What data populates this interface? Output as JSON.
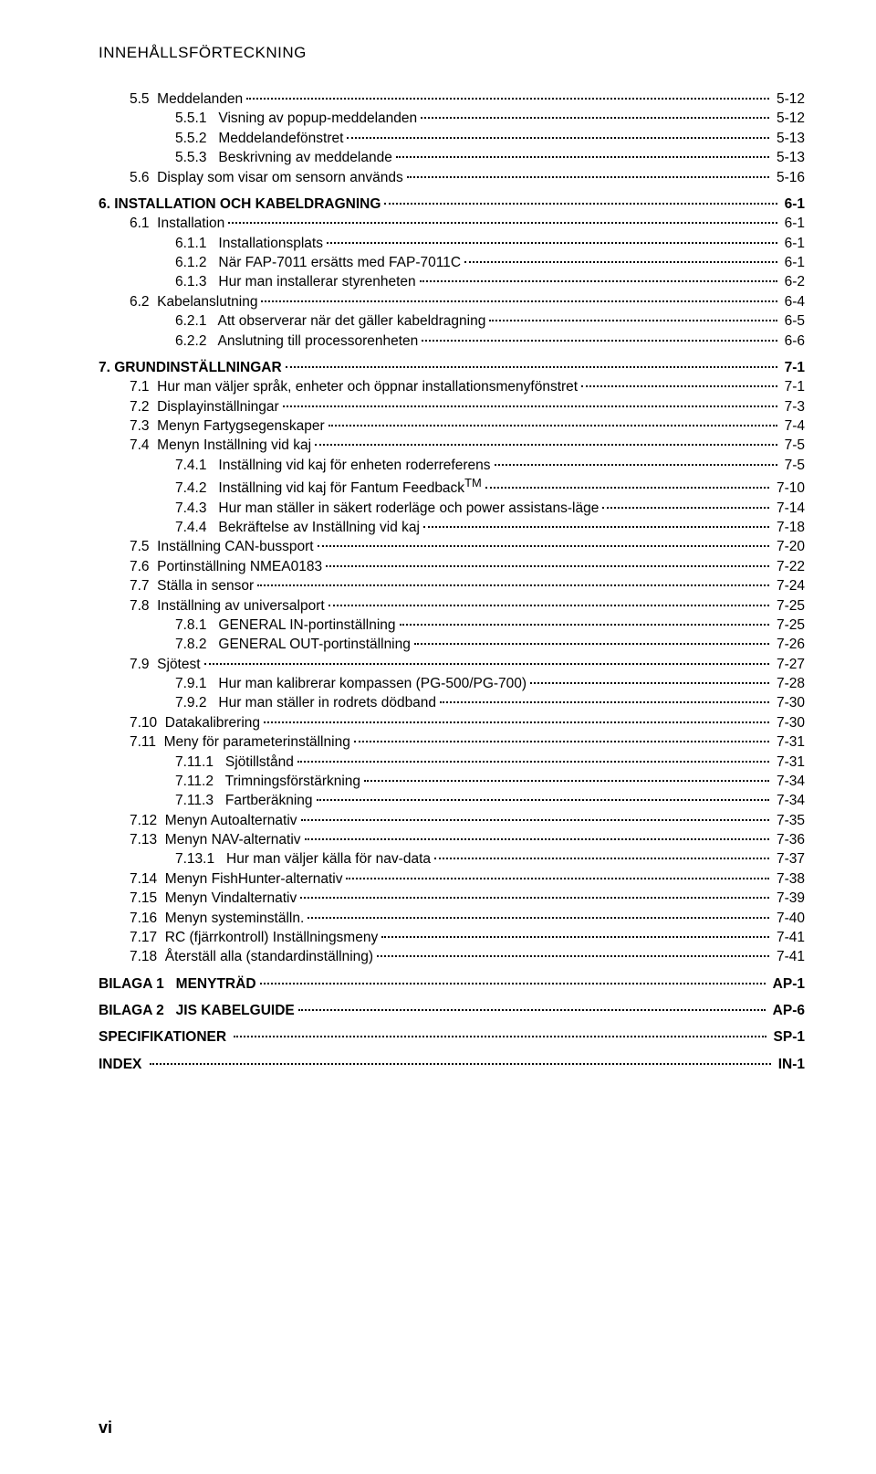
{
  "header": "INNEHÅLLSFÖRTECKNING",
  "footer": "vi",
  "toc": [
    {
      "level": 1,
      "num": "5.5",
      "title": "Meddelanden",
      "page": "5-12",
      "bold": false,
      "block": true
    },
    {
      "level": 2,
      "num": "5.5.1",
      "title": "Visning av popup-meddelanden",
      "page": "5-12"
    },
    {
      "level": 2,
      "num": "5.5.2",
      "title": "Meddelandefönstret",
      "page": "5-13"
    },
    {
      "level": 2,
      "num": "5.5.3",
      "title": "Beskrivning av meddelande",
      "page": "5-13"
    },
    {
      "level": 1,
      "num": "5.6",
      "title": "Display som visar om sensorn används",
      "page": "5-16"
    },
    {
      "level": 0,
      "num": "6.",
      "title": "INSTALLATION OCH KABELDRAGNING",
      "page": "6-1",
      "bold": true,
      "block": true
    },
    {
      "level": 1,
      "num": "6.1",
      "title": "Installation",
      "page": "6-1"
    },
    {
      "level": 2,
      "num": "6.1.1",
      "title": "Installationsplats",
      "page": "6-1"
    },
    {
      "level": 2,
      "num": "6.1.2",
      "title": "När FAP-7011 ersätts med FAP-7011C",
      "page": "6-1"
    },
    {
      "level": 2,
      "num": "6.1.3",
      "title": "Hur man installerar styrenheten",
      "page": "6-2"
    },
    {
      "level": 1,
      "num": "6.2",
      "title": "Kabelanslutning",
      "page": "6-4"
    },
    {
      "level": 2,
      "num": "6.2.1",
      "title": "Att observerar när det gäller kabeldragning",
      "page": "6-5"
    },
    {
      "level": 2,
      "num": "6.2.2",
      "title": "Anslutning till processorenheten",
      "page": "6-6"
    },
    {
      "level": 0,
      "num": "7.",
      "title": "GRUNDINSTÄLLNINGAR",
      "page": "7-1",
      "bold": true,
      "block": true
    },
    {
      "level": 1,
      "num": "7.1",
      "title": "Hur man väljer språk, enheter och öppnar installationsmenyfönstret",
      "page": "7-1"
    },
    {
      "level": 1,
      "num": "7.2",
      "title": "Displayinställningar",
      "page": "7-3"
    },
    {
      "level": 1,
      "num": "7.3",
      "title": "Menyn Fartygsegenskaper",
      "page": "7-4"
    },
    {
      "level": 1,
      "num": "7.4",
      "title": "Menyn Inställning vid kaj",
      "page": "7-5"
    },
    {
      "level": 2,
      "num": "7.4.1",
      "title": "Inställning vid kaj för enheten roderreferens",
      "page": "7-5"
    },
    {
      "level": 2,
      "num": "7.4.2",
      "title": "Inställning vid kaj för Fantum Feedback",
      "sup": "TM",
      "page": "7-10"
    },
    {
      "level": 2,
      "num": "7.4.3",
      "title": "Hur man ställer in säkert roderläge och power assistans-läge",
      "page": "7-14"
    },
    {
      "level": 2,
      "num": "7.4.4",
      "title": "Bekräftelse av Inställning vid kaj",
      "page": "7-18"
    },
    {
      "level": 1,
      "num": "7.5",
      "title": "Inställning CAN-bussport",
      "page": "7-20"
    },
    {
      "level": 1,
      "num": "7.6",
      "title": "Portinställning NMEA0183",
      "page": "7-22"
    },
    {
      "level": 1,
      "num": "7.7",
      "title": "Ställa in sensor",
      "page": "7-24"
    },
    {
      "level": 1,
      "num": "7.8",
      "title": "Inställning av universalport",
      "page": "7-25"
    },
    {
      "level": 2,
      "num": "7.8.1",
      "title": "GENERAL IN-portinställning",
      "page": "7-25"
    },
    {
      "level": 2,
      "num": "7.8.2",
      "title": "GENERAL OUT-portinställning",
      "page": "7-26"
    },
    {
      "level": 1,
      "num": "7.9",
      "title": "Sjötest",
      "page": "7-27"
    },
    {
      "level": 2,
      "num": "7.9.1",
      "title": "Hur man kalibrerar kompassen (PG-500/PG-700)",
      "page": "7-28"
    },
    {
      "level": 2,
      "num": "7.9.2",
      "title": "Hur man ställer in rodrets dödband",
      "page": "7-30"
    },
    {
      "level": 1,
      "num": "7.10",
      "title": "Datakalibrering",
      "page": "7-30"
    },
    {
      "level": 1,
      "num": "7.11",
      "title": "Meny för parameterinställning",
      "page": "7-31"
    },
    {
      "level": 2,
      "num": "7.11.1",
      "title": "Sjötillstånd",
      "page": "7-31"
    },
    {
      "level": 2,
      "num": "7.11.2",
      "title": "Trimningsförstärkning",
      "page": "7-34"
    },
    {
      "level": 2,
      "num": "7.11.3",
      "title": "Fartberäkning",
      "page": "7-34"
    },
    {
      "level": 1,
      "num": "7.12",
      "title": "Menyn Autoalternativ",
      "page": "7-35"
    },
    {
      "level": 1,
      "num": "7.13",
      "title": "Menyn NAV-alternativ",
      "page": "7-36"
    },
    {
      "level": 2,
      "num": "7.13.1",
      "title": "Hur man väljer källa för nav-data",
      "page": "7-37"
    },
    {
      "level": 1,
      "num": "7.14",
      "title": "Menyn FishHunter-alternativ",
      "page": "7-38"
    },
    {
      "level": 1,
      "num": "7.15",
      "title": "Menyn Vindalternativ",
      "page": "7-39"
    },
    {
      "level": 1,
      "num": "7.16",
      "title": "Menyn systeminställn.",
      "page": "7-40"
    },
    {
      "level": 1,
      "num": "7.17",
      "title": "RC (fjärrkontroll) Inställningsmeny",
      "page": "7-41"
    },
    {
      "level": 1,
      "num": "7.18",
      "title": "Återställ alla (standardinställning)",
      "page": "7-41"
    },
    {
      "level": 0,
      "num": "BILAGA 1",
      "title": "MENYTRÄD",
      "page": "AP-1",
      "bold": true,
      "block": true,
      "wideNum": true
    },
    {
      "level": 0,
      "num": "BILAGA 2",
      "title": "JIS KABELGUIDE",
      "page": "AP-6",
      "bold": true,
      "wideNum": true
    },
    {
      "level": 0,
      "num": "SPECIFIKATIONER",
      "title": "",
      "page": "SP-1",
      "bold": true
    },
    {
      "level": 0,
      "num": "INDEX",
      "title": "",
      "page": "IN-1",
      "bold": true
    }
  ]
}
